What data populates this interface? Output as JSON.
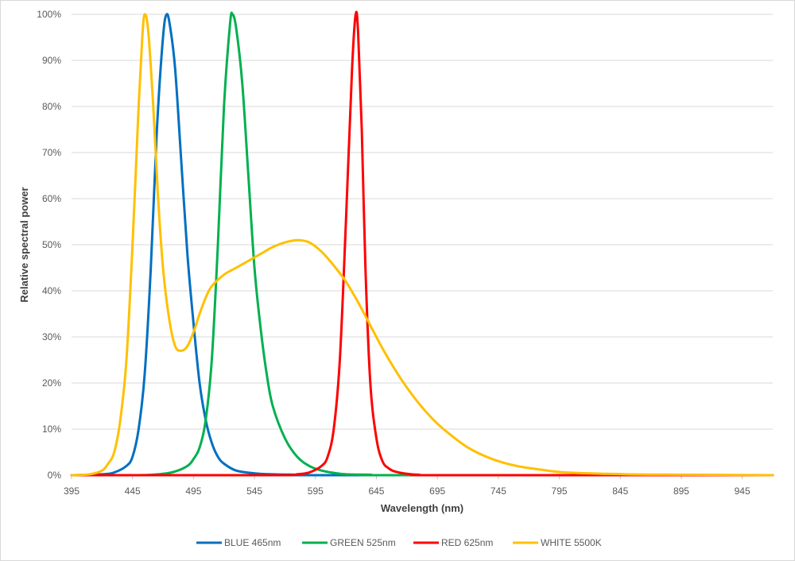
{
  "chart_data": {
    "type": "line",
    "xlabel": "Wavelength (nm)",
    "ylabel": "Relative spectral power",
    "xlim": [
      395,
      970
    ],
    "ylim": [
      0,
      100
    ],
    "x_ticks": [
      395,
      445,
      495,
      545,
      595,
      645,
      695,
      745,
      795,
      845,
      895,
      945
    ],
    "y_ticks": [
      "0%",
      "10%",
      "20%",
      "30%",
      "40%",
      "50%",
      "60%",
      "70%",
      "80%",
      "90%",
      "100%"
    ],
    "y_tick_values": [
      0,
      10,
      20,
      30,
      40,
      50,
      60,
      70,
      80,
      90,
      100
    ],
    "grid": "horizontal",
    "legend_position": "bottom",
    "series": [
      {
        "name": "BLUE 465nm",
        "color": "#0070c0",
        "x": [
          395,
          420,
          430,
          440,
          445,
          450,
          455,
          460,
          465,
          470,
          473,
          476,
          480,
          485,
          490,
          495,
          500,
          505,
          510,
          515,
          520,
          530,
          545,
          560,
          580,
          600,
          970
        ],
        "y": [
          0,
          0.2,
          0.6,
          2,
          4,
          10,
          22,
          45,
          75,
          95,
          100,
          97,
          88,
          68,
          48,
          33,
          20,
          12,
          7,
          4,
          2.5,
          1,
          0.4,
          0.2,
          0.1,
          0,
          0
        ]
      },
      {
        "name": "GREEN 525nm",
        "color": "#00b050",
        "x": [
          395,
          450,
          470,
          480,
          490,
          495,
          500,
          505,
          510,
          515,
          520,
          525,
          527,
          530,
          535,
          540,
          545,
          550,
          555,
          560,
          570,
          580,
          590,
          600,
          610,
          620,
          640,
          660,
          970
        ],
        "y": [
          0,
          0,
          0.3,
          0.8,
          2,
          3.5,
          6,
          12,
          25,
          50,
          80,
          98,
          100,
          97,
          85,
          65,
          45,
          32,
          22,
          15,
          8,
          4,
          2,
          1,
          0.5,
          0.2,
          0.1,
          0,
          0
        ]
      },
      {
        "name": "RED 625nm",
        "color": "#ff0000",
        "x": [
          395,
          560,
          580,
          590,
          600,
          605,
          610,
          615,
          620,
          625,
          628,
          630,
          633,
          636,
          640,
          645,
          650,
          655,
          660,
          670,
          680,
          700,
          970
        ],
        "y": [
          0,
          0,
          0.2,
          0.6,
          2,
          4,
          10,
          25,
          55,
          88,
          100,
          96,
          75,
          45,
          20,
          8,
          3,
          1.5,
          0.8,
          0.3,
          0.1,
          0,
          0
        ]
      },
      {
        "name": "WHITE 5500K",
        "color": "#ffc000",
        "x": [
          395,
          410,
          420,
          425,
          430,
          435,
          440,
          445,
          450,
          453,
          455,
          458,
          462,
          466,
          470,
          475,
          480,
          485,
          490,
          495,
          500,
          505,
          510,
          520,
          530,
          540,
          550,
          560,
          570,
          580,
          590,
          600,
          610,
          620,
          630,
          640,
          650,
          660,
          670,
          680,
          690,
          700,
          720,
          740,
          760,
          780,
          800,
          850,
          900,
          970
        ],
        "y": [
          0,
          0.2,
          1,
          2.5,
          5,
          12,
          25,
          50,
          80,
          95,
          100,
          96,
          80,
          60,
          45,
          34,
          28,
          27,
          28,
          31,
          35,
          38.5,
          41,
          43.5,
          45,
          46.5,
          48,
          49.5,
          50.5,
          51,
          50.5,
          48.5,
          45.5,
          42,
          37.5,
          32.5,
          27.5,
          23,
          19,
          15.5,
          12.5,
          10,
          6,
          3.5,
          2,
          1.2,
          0.6,
          0.2,
          0.1,
          0
        ]
      }
    ]
  }
}
